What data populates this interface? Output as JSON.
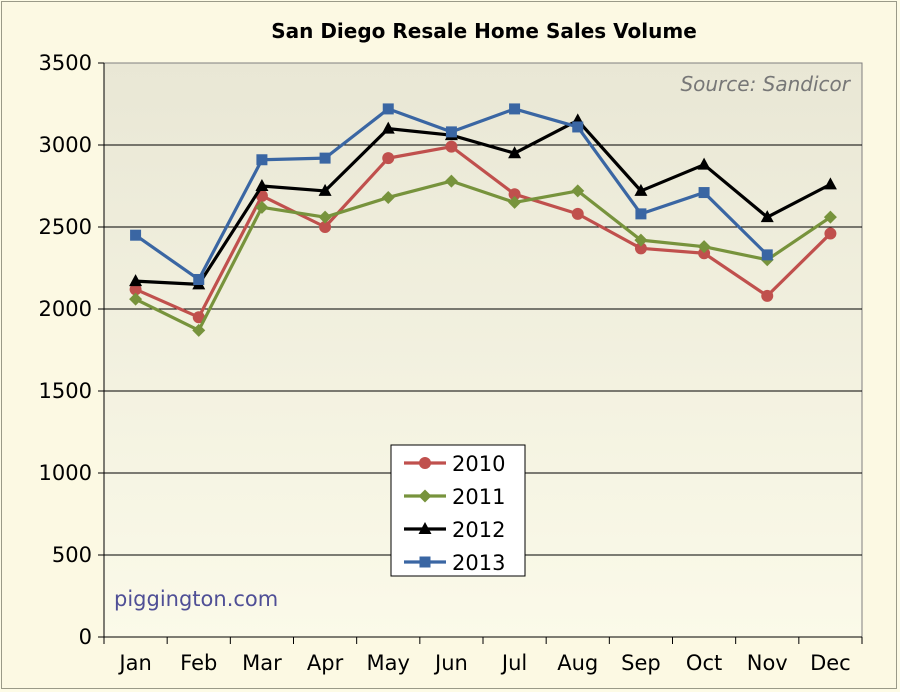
{
  "chart_data": {
    "type": "line",
    "title": "San Diego Resale Home Sales Volume",
    "source_note": "Source: Sandicor",
    "credit": "piggington.com",
    "categories": [
      "Jan",
      "Feb",
      "Mar",
      "Apr",
      "May",
      "Jun",
      "Jul",
      "Aug",
      "Sep",
      "Oct",
      "Nov",
      "Dec"
    ],
    "ylim": [
      0,
      3500
    ],
    "yticks": [
      0,
      500,
      1000,
      1500,
      2000,
      2500,
      3000,
      3500
    ],
    "grid": true,
    "legend_position": "bottom-center",
    "series": [
      {
        "name": "2010",
        "color": "#c0504d",
        "marker": "circle",
        "values": [
          2120,
          1950,
          2690,
          2500,
          2920,
          2990,
          2700,
          2580,
          2370,
          2340,
          2080,
          2460
        ]
      },
      {
        "name": "2011",
        "color": "#77933c",
        "marker": "diamond",
        "values": [
          2060,
          1870,
          2620,
          2560,
          2680,
          2780,
          2650,
          2720,
          2420,
          2380,
          2300,
          2560
        ]
      },
      {
        "name": "2012",
        "color": "#000000",
        "marker": "triangle",
        "values": [
          2170,
          2150,
          2750,
          2720,
          3100,
          3060,
          2950,
          3150,
          2720,
          2880,
          2560,
          2760
        ]
      },
      {
        "name": "2013",
        "color": "#3a66a3",
        "marker": "square",
        "values": [
          2450,
          2180,
          2910,
          2920,
          3220,
          3080,
          3220,
          3110,
          2580,
          2710,
          2330,
          null
        ]
      }
    ]
  }
}
